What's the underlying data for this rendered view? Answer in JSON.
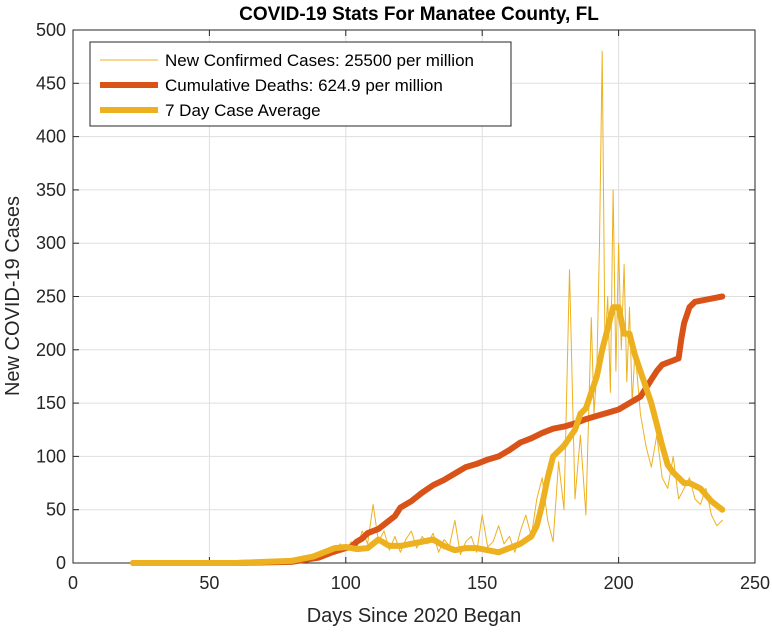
{
  "figure": {
    "title": "COVID-19 Stats For Manatee County, FL"
  },
  "chart_data": {
    "type": "line",
    "title": "COVID-19 Stats For Manatee County, FL",
    "xlabel": "Days Since 2020 Began",
    "ylabel": "New COVID-19 Cases",
    "xlim": [
      0,
      250
    ],
    "ylim": [
      0,
      500
    ],
    "xticks": [
      0,
      50,
      100,
      150,
      200,
      250
    ],
    "yticks": [
      0,
      50,
      100,
      150,
      200,
      250,
      300,
      350,
      400,
      450,
      500
    ],
    "grid": true,
    "legend_position": "top-left",
    "series": [
      {
        "name": "New Confirmed Cases: 25500 per million",
        "color": "#EDB120",
        "style": "thin",
        "x": [
          22,
          40,
          60,
          70,
          75,
          80,
          84,
          86,
          88,
          90,
          92,
          94,
          96,
          98,
          100,
          102,
          104,
          106,
          108,
          110,
          112,
          114,
          116,
          118,
          120,
          122,
          124,
          126,
          128,
          130,
          132,
          134,
          136,
          138,
          140,
          142,
          144,
          146,
          148,
          150,
          152,
          154,
          156,
          158,
          160,
          162,
          164,
          166,
          168,
          170,
          172,
          174,
          176,
          178,
          180,
          182,
          184,
          186,
          188,
          190,
          191,
          192,
          193,
          194,
          195,
          196,
          197,
          198,
          199,
          200,
          201,
          202,
          203,
          204,
          205,
          206,
          208,
          210,
          212,
          214,
          216,
          218,
          220,
          222,
          224,
          226,
          228,
          230,
          232,
          234,
          236,
          238
        ],
        "y": [
          0,
          0,
          0,
          1,
          2,
          2,
          3,
          6,
          4,
          8,
          10,
          14,
          8,
          18,
          12,
          20,
          14,
          30,
          18,
          55,
          20,
          30,
          12,
          25,
          10,
          22,
          30,
          14,
          25,
          18,
          28,
          10,
          22,
          16,
          40,
          8,
          20,
          25,
          10,
          45,
          15,
          20,
          35,
          18,
          25,
          10,
          30,
          45,
          25,
          60,
          80,
          40,
          20,
          95,
          50,
          275,
          60,
          120,
          45,
          230,
          140,
          180,
          300,
          480,
          200,
          250,
          160,
          350,
          180,
          300,
          200,
          280,
          170,
          240,
          150,
          200,
          140,
          110,
          90,
          120,
          80,
          70,
          100,
          60,
          70,
          80,
          60,
          55,
          70,
          45,
          35,
          40
        ]
      },
      {
        "name": "Cumulative Deaths: 624.9 per million",
        "color": "#D95319",
        "style": "thick",
        "x": [
          22,
          60,
          80,
          90,
          95,
          100,
          102,
          104,
          106,
          108,
          110,
          112,
          114,
          116,
          118,
          120,
          124,
          128,
          132,
          136,
          140,
          144,
          148,
          152,
          156,
          160,
          164,
          168,
          172,
          176,
          180,
          184,
          188,
          192,
          196,
          200,
          204,
          208,
          210,
          212,
          214,
          216,
          218,
          220,
          222,
          223,
          224,
          226,
          228,
          232,
          236,
          238
        ],
        "y": [
          0,
          0,
          1,
          5,
          10,
          14,
          15,
          20,
          23,
          28,
          30,
          32,
          36,
          40,
          44,
          52,
          58,
          66,
          73,
          78,
          84,
          90,
          93,
          97,
          100,
          106,
          113,
          117,
          122,
          126,
          128,
          131,
          135,
          138,
          141,
          144,
          150,
          156,
          164,
          172,
          180,
          186,
          188,
          190,
          192,
          210,
          225,
          240,
          245,
          247,
          249,
          250
        ]
      },
      {
        "name": "7 Day Case Average",
        "color": "#EDB120",
        "style": "thick",
        "x": [
          22,
          40,
          60,
          70,
          80,
          84,
          88,
          92,
          96,
          100,
          104,
          108,
          112,
          116,
          120,
          124,
          128,
          132,
          136,
          140,
          144,
          148,
          152,
          156,
          160,
          164,
          168,
          170,
          172,
          174,
          176,
          180,
          184,
          186,
          188,
          190,
          192,
          194,
          196,
          198,
          200,
          202,
          204,
          206,
          208,
          210,
          212,
          214,
          216,
          218,
          220,
          224,
          226,
          230,
          234,
          238
        ],
        "y": [
          0,
          0,
          0,
          1,
          2,
          4,
          6,
          10,
          14,
          15,
          13,
          14,
          22,
          16,
          16,
          18,
          20,
          22,
          16,
          12,
          14,
          14,
          12,
          10,
          14,
          18,
          25,
          35,
          55,
          80,
          100,
          110,
          125,
          140,
          145,
          160,
          175,
          200,
          220,
          240,
          240,
          215,
          215,
          195,
          180,
          165,
          150,
          130,
          110,
          92,
          85,
          75,
          75,
          70,
          58,
          50
        ]
      }
    ]
  }
}
